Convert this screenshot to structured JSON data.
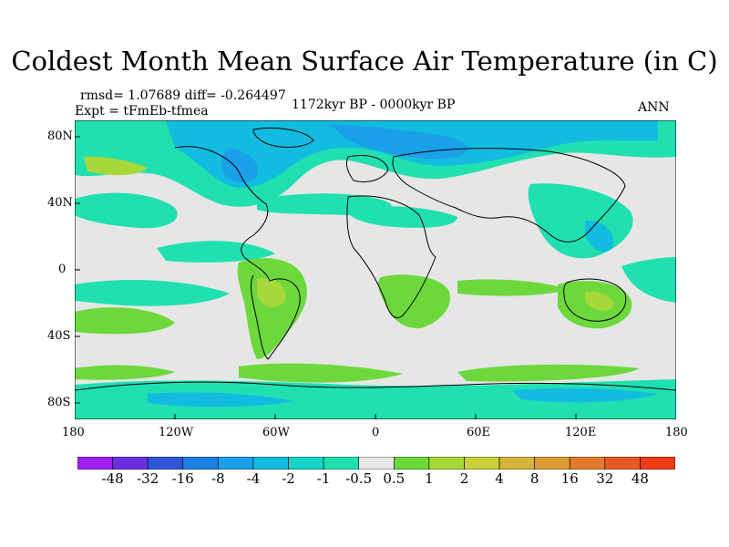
{
  "title": "Coldest Month Mean Surface Air Temperature (in C)",
  "stats": "rmsd= 1.07689 diff= -0.264497",
  "experiment": "Expt = tFmEb-tfmea",
  "period": "1172kyr BP - 0000kyr BP",
  "season": "ANN",
  "x_ticks": [
    "180",
    "120W",
    "60W",
    "0",
    "60E",
    "120E",
    "180"
  ],
  "y_ticks": [
    "80N",
    "40N",
    "0",
    "40S",
    "80S"
  ],
  "colorbar": {
    "labels": [
      "-48",
      "-32",
      "-16",
      "-8",
      "-4",
      "-2",
      "-1",
      "-0.5",
      "0.5",
      "1",
      "2",
      "4",
      "8",
      "16",
      "32",
      "48"
    ],
    "colors": [
      "#a020f0",
      "#6a2fe0",
      "#2f55d8",
      "#1a7fe0",
      "#1aa0e8",
      "#12bce0",
      "#14d4c8",
      "#20e0b0",
      "#e6e6e6",
      "#6cd83c",
      "#a6d83a",
      "#c8d03a",
      "#d6b43a",
      "#dc9a34",
      "#e27a2c",
      "#e85a24",
      "#ec3c18"
    ]
  },
  "colors": {
    "neutral": "#e6e6e6",
    "teal": "#20e0b0",
    "cyan": "#12bce0",
    "blue": "#1aa0e8",
    "green": "#6cd83c",
    "yellowgreen": "#a6d83a",
    "coast": "#000000"
  }
}
